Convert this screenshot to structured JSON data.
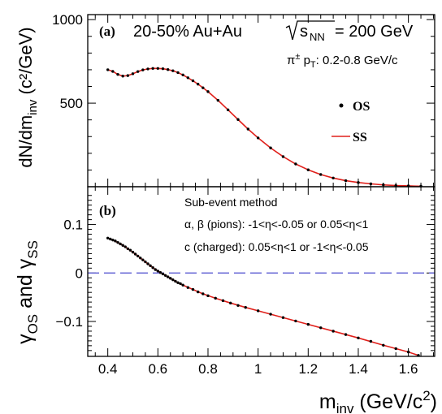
{
  "chart_data": [
    {
      "panel": "top",
      "type": "scatter",
      "panel_label": "(a)",
      "title": "20-50% Au+Au",
      "sqrt_part": "s",
      "sqrt_sub": "NN",
      "energy": "= 200 GeV",
      "ylabel": "dN/dm",
      "ylabel_sub": "inv",
      "ylabel_unit": " (c²/GeV)",
      "annotation": {
        "main": "π",
        "sup": "±",
        "mid": " p",
        "sub": "T",
        "rest": ": 0.2-0.8 GeV/c"
      },
      "legend_placement": "right",
      "xlim": [
        0.32,
        1.705
      ],
      "ylim": [
        0,
        1030
      ],
      "yticks": [
        {
          "v": 500,
          "label": "500"
        },
        {
          "v": 1000,
          "label": "1000"
        }
      ],
      "series": [
        {
          "name": "OS",
          "kind": "markers",
          "color": "#000000",
          "x": [
            0.4,
            0.42,
            0.44,
            0.46,
            0.48,
            0.5,
            0.52,
            0.54,
            0.56,
            0.58,
            0.6,
            0.62,
            0.64,
            0.66,
            0.68,
            0.7,
            0.72,
            0.74,
            0.76,
            0.78,
            0.8,
            0.84,
            0.88,
            0.92,
            0.96,
            1.0,
            1.05,
            1.1,
            1.15,
            1.2,
            1.25,
            1.3,
            1.35,
            1.4,
            1.45,
            1.5,
            1.55,
            1.6,
            1.65
          ],
          "y": [
            700,
            690,
            672,
            662,
            665,
            676,
            689,
            699,
            705,
            708,
            708,
            706,
            701,
            694,
            683,
            669,
            652,
            634,
            614,
            592,
            569,
            517,
            460,
            402,
            345,
            292,
            232,
            180,
            136,
            101,
            73,
            52,
            36,
            25,
            17,
            11,
            7,
            5,
            3
          ]
        },
        {
          "name": "SS",
          "kind": "line",
          "color": "#e0201b",
          "x": [
            0.4,
            0.42,
            0.44,
            0.46,
            0.48,
            0.5,
            0.52,
            0.54,
            0.56,
            0.58,
            0.6,
            0.62,
            0.64,
            0.66,
            0.68,
            0.7,
            0.72,
            0.74,
            0.76,
            0.78,
            0.8,
            0.84,
            0.88,
            0.92,
            0.96,
            1.0,
            1.05,
            1.1,
            1.15,
            1.2,
            1.25,
            1.3,
            1.35,
            1.4,
            1.45,
            1.5,
            1.55,
            1.6,
            1.65
          ],
          "y": [
            700,
            690,
            672,
            662,
            665,
            676,
            689,
            699,
            705,
            708,
            708,
            706,
            701,
            694,
            683,
            669,
            652,
            634,
            614,
            592,
            569,
            517,
            460,
            402,
            345,
            292,
            232,
            180,
            136,
            101,
            73,
            52,
            36,
            25,
            17,
            11,
            7,
            5,
            3
          ]
        }
      ]
    },
    {
      "panel": "bottom",
      "type": "scatter",
      "panel_label": "(b)",
      "ylabel_parts": [
        "γ",
        "OS",
        " and γ",
        "SS"
      ],
      "xlabel": "m",
      "xlabel_sub": "inv",
      "xlabel_unit": " (GeV/c",
      "xlabel_sup": "2",
      "xlabel_end": ")",
      "notes": [
        "Sub-event method",
        "α, β (pions): -1<η<-0.05 or 0.05<η<1",
        "c (charged): 0.05<η<1 or -1<η<-0.05"
      ],
      "xlim": [
        0.32,
        1.705
      ],
      "ylim": [
        -0.172,
        0.178
      ],
      "xticks": [
        {
          "v": 0.4,
          "label": "0.4"
        },
        {
          "v": 0.6,
          "label": "0.6"
        },
        {
          "v": 0.8,
          "label": "0.8"
        },
        {
          "v": 1.0,
          "label": "1"
        },
        {
          "v": 1.2,
          "label": "1.2"
        },
        {
          "v": 1.4,
          "label": "1.4"
        },
        {
          "v": 1.6,
          "label": "1.6"
        }
      ],
      "yticks": [
        {
          "v": -0.1,
          "label": "−0.1"
        },
        {
          "v": 0,
          "label": "0"
        },
        {
          "v": 0.1,
          "label": "0.1"
        }
      ],
      "zero_line": {
        "value": 0,
        "color": "#5a5ad2",
        "style": "dashed"
      },
      "series": [
        {
          "name": "OS",
          "kind": "markers",
          "color": "#000000",
          "x": [
            0.4,
            0.41,
            0.42,
            0.43,
            0.44,
            0.45,
            0.46,
            0.47,
            0.48,
            0.49,
            0.5,
            0.51,
            0.52,
            0.53,
            0.54,
            0.55,
            0.56,
            0.57,
            0.58,
            0.59,
            0.6,
            0.61,
            0.62,
            0.63,
            0.64,
            0.65,
            0.66,
            0.67,
            0.68,
            0.69,
            0.7,
            0.72,
            0.74,
            0.76,
            0.78,
            0.8,
            0.83,
            0.86,
            0.89,
            0.92,
            0.95,
            1.0,
            1.05,
            1.1,
            1.15,
            1.2,
            1.25,
            1.3,
            1.35,
            1.4,
            1.45,
            1.5,
            1.55,
            1.6,
            1.64
          ],
          "y": [
            0.072,
            0.07,
            0.068,
            0.066,
            0.063,
            0.06,
            0.057,
            0.054,
            0.05,
            0.047,
            0.043,
            0.039,
            0.035,
            0.031,
            0.027,
            0.023,
            0.019,
            0.015,
            0.011,
            0.007,
            0.004,
            0.001,
            -0.002,
            -0.005,
            -0.008,
            -0.011,
            -0.014,
            -0.017,
            -0.02,
            -0.022,
            -0.025,
            -0.03,
            -0.034,
            -0.039,
            -0.043,
            -0.047,
            -0.052,
            -0.057,
            -0.062,
            -0.067,
            -0.071,
            -0.078,
            -0.085,
            -0.092,
            -0.099,
            -0.106,
            -0.113,
            -0.12,
            -0.127,
            -0.134,
            -0.141,
            -0.149,
            -0.156,
            -0.163,
            -0.17
          ]
        },
        {
          "name": "SS",
          "kind": "line",
          "color": "#e0201b",
          "x": [
            0.4,
            0.42,
            0.44,
            0.46,
            0.48,
            0.5,
            0.52,
            0.54,
            0.56,
            0.58,
            0.6,
            0.62,
            0.64,
            0.66,
            0.68,
            0.7,
            0.74,
            0.78,
            0.83,
            0.89,
            0.95,
            1.0,
            1.1,
            1.2,
            1.3,
            1.4,
            1.5,
            1.6,
            1.64
          ],
          "y": [
            0.072,
            0.068,
            0.063,
            0.057,
            0.05,
            0.043,
            0.035,
            0.027,
            0.019,
            0.011,
            0.004,
            -0.002,
            -0.008,
            -0.014,
            -0.02,
            -0.025,
            -0.034,
            -0.043,
            -0.052,
            -0.062,
            -0.071,
            -0.078,
            -0.092,
            -0.106,
            -0.12,
            -0.134,
            -0.149,
            -0.163,
            -0.17
          ]
        }
      ]
    }
  ]
}
